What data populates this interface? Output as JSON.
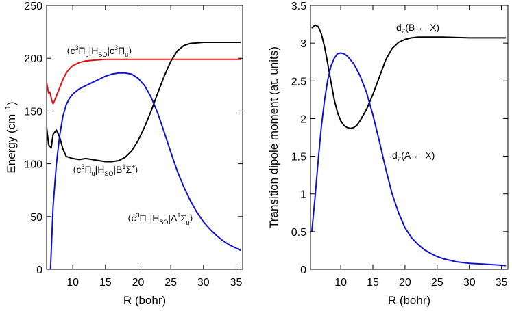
{
  "chart_data": [
    {
      "type": "line",
      "xlabel": "R (bohr)",
      "ylabel": "Energy (cm",
      "ylabel_sup": "−1",
      "ylabel_tail": ")",
      "xlim": [
        6,
        36
      ],
      "ylim": [
        0,
        250
      ],
      "xticks": [
        10,
        15,
        20,
        25,
        30,
        35
      ],
      "yticks": [
        0,
        50,
        100,
        150,
        200,
        250
      ],
      "grid": false,
      "series": [
        {
          "name": "⟨c³Πu|HSO|c³Πu⟩",
          "color": "#e01010",
          "x": [
            6.0,
            6.3,
            6.5,
            6.8,
            7.0,
            7.3,
            7.6,
            8.0,
            8.5,
            9.0,
            9.5,
            10,
            11,
            12,
            13,
            14,
            15,
            17,
            20,
            25,
            30,
            35.7
          ],
          "y": [
            177,
            167,
            168,
            160,
            157,
            161,
            166,
            172,
            180,
            186,
            190,
            193,
            196,
            197.5,
            198,
            198.5,
            199,
            199,
            199,
            199,
            199,
            199
          ]
        },
        {
          "name": "⟨c³Πu|HSO|B¹Σu⁺⟩",
          "color": "#000000",
          "x": [
            6.0,
            6.3,
            6.7,
            7.0,
            7.5,
            8.0,
            8.5,
            9.0,
            10,
            11,
            12,
            13,
            14,
            15,
            16,
            17,
            18,
            19,
            20,
            21,
            22,
            23,
            24,
            25,
            26,
            27,
            28,
            30,
            32,
            35.7
          ],
          "y": [
            135,
            118,
            115,
            128,
            132,
            125,
            114,
            107,
            105,
            104,
            105,
            104,
            103,
            102,
            102,
            103,
            106,
            112,
            122,
            135,
            150,
            167,
            183,
            197,
            207,
            212,
            214,
            215,
            215,
            215
          ]
        },
        {
          "name": "⟨c³Πu|HSO|A¹Σu⁺⟩",
          "color": "#1010d0",
          "x": [
            6.6,
            7.0,
            7.5,
            8.0,
            8.5,
            9.0,
            9.5,
            10,
            11,
            12,
            13,
            14,
            15,
            16,
            17,
            18,
            19,
            20,
            21,
            22,
            23,
            24,
            25,
            26,
            27,
            28,
            29,
            30,
            31,
            32,
            33,
            34,
            35.7
          ],
          "y": [
            0,
            60,
            100,
            127,
            145,
            156,
            162,
            166,
            171,
            174,
            177,
            180,
            183,
            185,
            186,
            186,
            185,
            181,
            174,
            163,
            148,
            130,
            111,
            93,
            78,
            65,
            54,
            45,
            38,
            32,
            27,
            23,
            18
          ]
        }
      ]
    },
    {
      "type": "line",
      "xlabel": "R (bohr)",
      "ylabel": "Transition dipole moment (at. units)",
      "xlim": [
        5.3,
        36
      ],
      "ylim": [
        0,
        3.5
      ],
      "xticks": [
        10,
        15,
        20,
        25,
        30,
        35
      ],
      "yticks": [
        0,
        0.5,
        1,
        1.5,
        2,
        2.5,
        3,
        3.5
      ],
      "ytick_labels": [
        "0",
        "0.5",
        "1",
        "1.5",
        "2",
        "2.5",
        "3",
        "3.5"
      ],
      "grid": false,
      "series": [
        {
          "name": "dz(B ← X)",
          "color": "#000000",
          "x": [
            5.5,
            6.0,
            6.5,
            7.0,
            7.5,
            8.0,
            8.5,
            9.0,
            9.5,
            10,
            10.5,
            11,
            11.5,
            12,
            12.5,
            13,
            14,
            15,
            16,
            17,
            18,
            19,
            20,
            21,
            22,
            24,
            26,
            30,
            35.7
          ],
          "y": [
            3.2,
            3.24,
            3.22,
            3.12,
            2.95,
            2.72,
            2.48,
            2.25,
            2.08,
            1.97,
            1.91,
            1.88,
            1.87,
            1.88,
            1.91,
            1.97,
            2.12,
            2.32,
            2.55,
            2.78,
            2.93,
            3.01,
            3.05,
            3.07,
            3.08,
            3.08,
            3.08,
            3.07,
            3.07
          ]
        },
        {
          "name": "dz(A ← X)",
          "color": "#1010d0",
          "x": [
            5.5,
            6.0,
            6.5,
            7.0,
            7.5,
            8.0,
            8.5,
            9.0,
            9.5,
            10,
            10.5,
            11,
            12,
            13,
            14,
            15,
            16,
            17,
            18,
            19,
            20,
            21,
            22,
            23,
            24,
            25,
            26,
            28,
            30,
            32,
            34,
            35.7
          ],
          "y": [
            0.5,
            0.95,
            1.45,
            1.9,
            2.25,
            2.52,
            2.7,
            2.8,
            2.86,
            2.87,
            2.86,
            2.83,
            2.73,
            2.57,
            2.35,
            2.05,
            1.7,
            1.33,
            1.0,
            0.75,
            0.55,
            0.42,
            0.33,
            0.26,
            0.21,
            0.17,
            0.14,
            0.1,
            0.08,
            0.07,
            0.06,
            0.05
          ]
        }
      ]
    }
  ]
}
